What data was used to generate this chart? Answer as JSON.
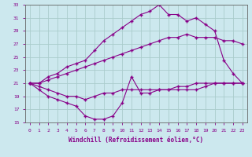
{
  "xlabel": "Windchill (Refroidissement éolien,°C)",
  "bg_color": "#cce8ee",
  "grid_color": "#aacccc",
  "line_color": "#880088",
  "xlim": [
    -0.5,
    23.5
  ],
  "ylim": [
    15,
    33
  ],
  "xticks": [
    0,
    1,
    2,
    3,
    4,
    5,
    6,
    7,
    8,
    9,
    10,
    11,
    12,
    13,
    14,
    15,
    16,
    17,
    18,
    19,
    20,
    21,
    22,
    23
  ],
  "yticks": [
    15,
    17,
    19,
    21,
    23,
    25,
    27,
    29,
    31,
    33
  ],
  "line1_x": [
    0,
    1,
    2,
    3,
    4,
    5,
    6,
    7,
    8,
    9,
    10,
    11,
    12,
    13,
    14,
    15,
    16,
    17,
    18,
    19,
    20,
    21,
    22,
    23
  ],
  "line1_y": [
    21.0,
    21.0,
    21.5,
    22.0,
    22.5,
    23.0,
    23.5,
    24.0,
    24.5,
    25.0,
    25.5,
    26.0,
    26.5,
    27.0,
    27.5,
    28.0,
    28.0,
    28.5,
    28.0,
    28.0,
    28.0,
    27.5,
    27.5,
    27.0
  ],
  "line2_x": [
    0,
    1,
    2,
    3,
    4,
    5,
    6,
    7,
    8,
    9,
    10,
    11,
    12,
    13,
    14,
    15,
    16,
    17,
    18,
    19,
    20,
    21,
    22,
    23
  ],
  "line2_y": [
    21.0,
    21.0,
    22.0,
    22.5,
    23.5,
    24.0,
    24.5,
    26.0,
    27.5,
    28.5,
    29.5,
    30.5,
    31.5,
    32.0,
    33.0,
    31.5,
    31.5,
    30.5,
    31.0,
    30.0,
    29.0,
    24.5,
    22.5,
    21.0
  ],
  "line3_x": [
    0,
    1,
    2,
    3,
    4,
    5,
    6,
    7,
    8,
    9,
    10,
    11,
    12,
    13,
    14,
    15,
    16,
    17,
    18,
    19,
    20,
    21,
    22,
    23
  ],
  "line3_y": [
    21.0,
    20.5,
    20.0,
    19.5,
    19.0,
    19.0,
    18.5,
    19.0,
    19.5,
    19.5,
    20.0,
    20.0,
    20.0,
    20.0,
    20.0,
    20.0,
    20.5,
    20.5,
    21.0,
    21.0,
    21.0,
    21.0,
    21.0,
    21.0
  ],
  "line4_x": [
    0,
    1,
    2,
    3,
    4,
    5,
    6,
    7,
    8,
    9,
    10,
    11,
    12,
    13,
    14,
    15,
    16,
    17,
    18,
    19,
    20,
    21,
    22,
    23
  ],
  "line4_y": [
    21.0,
    20.0,
    19.0,
    18.5,
    18.0,
    17.5,
    16.0,
    15.5,
    15.5,
    16.0,
    18.0,
    22.0,
    19.5,
    19.5,
    20.0,
    20.0,
    20.0,
    20.0,
    20.0,
    20.5,
    21.0,
    21.0,
    21.0,
    21.0
  ],
  "marker": "+"
}
